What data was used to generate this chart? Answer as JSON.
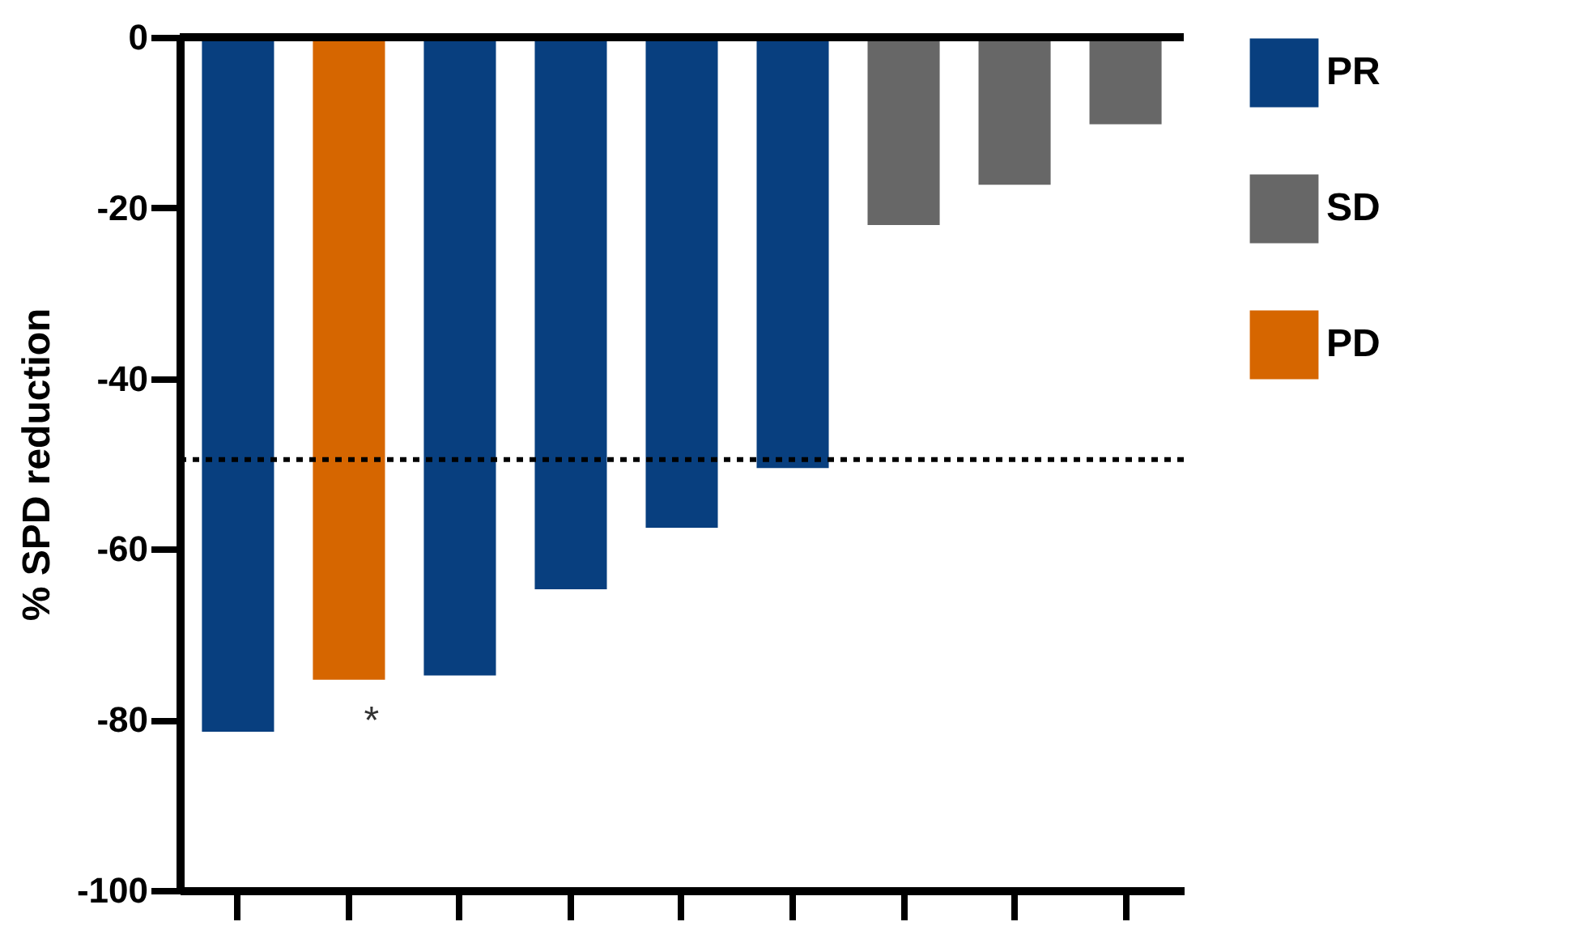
{
  "chart_data": {
    "type": "bar",
    "ylabel": "% SPD reduction",
    "categories": [
      null,
      null,
      null,
      null,
      null,
      null,
      null,
      null,
      null
    ],
    "series": [
      {
        "name": "PR",
        "color": "#083f7f",
        "values": [
          -81.4,
          null,
          -74.8,
          -64.7,
          -57.5,
          -50.5,
          null,
          null,
          null
        ]
      },
      {
        "name": "SD",
        "color": "#676767",
        "values": [
          null,
          null,
          null,
          null,
          null,
          null,
          -22,
          -17.3,
          -10.2
        ]
      },
      {
        "name": "PD",
        "color": "#d66600",
        "values": [
          null,
          -75.3,
          null,
          null,
          null,
          null,
          null,
          null,
          null
        ]
      }
    ],
    "ylim": [
      -100,
      0
    ],
    "yticks": [
      -100,
      -80,
      -60,
      -40,
      -20,
      0
    ],
    "ref_lines": [
      {
        "axis": "y",
        "value": -49.5,
        "line_style": "dotted",
        "color": "#000000"
      }
    ],
    "annotations": [
      "*"
    ],
    "legend": "right",
    "tick_labels": "y",
    "grid": false
  }
}
